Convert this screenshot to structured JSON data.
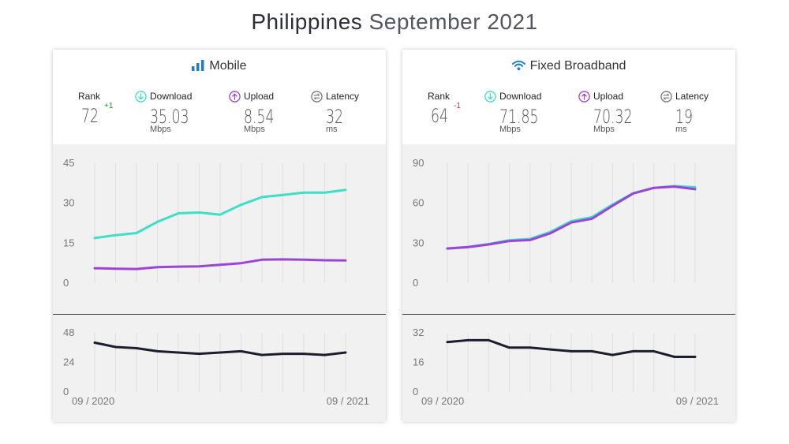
{
  "title": {
    "country": "Philippines",
    "period": "September 2021"
  },
  "colors": {
    "download": "#3ddfc7",
    "upload": "#9b45d8",
    "latency": "#1d1d2e",
    "rank_up": "#2e8b2e",
    "rank_down": "#d0314a",
    "accent_blue": "#1f7bd6"
  },
  "icons": {
    "mobile": "signal-bars-icon",
    "fixed": "wifi-icon",
    "download": "download-arrow-icon",
    "upload": "upload-arrow-icon",
    "latency": "latency-arrows-icon"
  },
  "cards": [
    {
      "title": "Mobile",
      "rank": {
        "label": "Rank",
        "value": "72",
        "change": "+1"
      },
      "download": {
        "label": "Download",
        "value": "35.03",
        "unit": "Mbps"
      },
      "upload": {
        "label": "Upload",
        "value": "8.54",
        "unit": "Mbps"
      },
      "latency": {
        "label": "Latency",
        "value": "32",
        "unit": "ms"
      },
      "x_labels": [
        "09 / 2020",
        "09 / 2021"
      ]
    },
    {
      "title": "Fixed Broadband",
      "rank": {
        "label": "Rank",
        "value": "64",
        "change": "-1"
      },
      "download": {
        "label": "Download",
        "value": "71.85",
        "unit": "Mbps"
      },
      "upload": {
        "label": "Upload",
        "value": "70.32",
        "unit": "Mbps"
      },
      "latency": {
        "label": "Latency",
        "value": "19",
        "unit": "ms"
      },
      "x_labels": [
        "09 / 2020",
        "09 / 2021"
      ]
    }
  ],
  "chart_data": [
    {
      "type": "line",
      "title": "Mobile",
      "x": [
        "09/2020",
        "10/2020",
        "11/2020",
        "12/2020",
        "01/2021",
        "02/2021",
        "03/2021",
        "04/2021",
        "05/2021",
        "06/2021",
        "07/2021",
        "08/2021",
        "09/2021"
      ],
      "speed": {
        "ylim": [
          0,
          45
        ],
        "yticks": [
          0,
          15,
          30,
          45
        ],
        "series": [
          {
            "name": "Download",
            "values": [
              16.9,
              18.0,
              18.8,
              23.0,
              26.2,
              26.5,
              25.7,
              29.4,
              32.3,
              33.1,
              34.0,
              34.0,
              35.0
            ]
          },
          {
            "name": "Upload",
            "values": [
              5.6,
              5.4,
              5.3,
              6.0,
              6.2,
              6.3,
              6.9,
              7.5,
              8.8,
              8.9,
              8.8,
              8.6,
              8.5
            ]
          }
        ]
      },
      "latency": {
        "ylim": [
          0,
          48
        ],
        "yticks": [
          0,
          24,
          48
        ],
        "series": [
          {
            "name": "Latency",
            "values": [
              40,
              36.5,
              35.5,
              33,
              32,
              31,
              32,
              33,
              30,
              31,
              31,
              30,
              32
            ]
          }
        ]
      }
    },
    {
      "type": "line",
      "title": "Fixed Broadband",
      "x": [
        "09/2020",
        "10/2020",
        "11/2020",
        "12/2020",
        "01/2021",
        "02/2021",
        "03/2021",
        "04/2021",
        "05/2021",
        "06/2021",
        "07/2021",
        "08/2021",
        "09/2021"
      ],
      "speed": {
        "ylim": [
          0,
          90
        ],
        "yticks": [
          0,
          30,
          60,
          90
        ],
        "series": [
          {
            "name": "Download",
            "values": [
              26.0,
              27.2,
              29.3,
              32.2,
              33.2,
              38.5,
              46.5,
              49.5,
              59.0,
              67.5,
              71.5,
              72.8,
              72.0
            ]
          },
          {
            "name": "Upload",
            "values": [
              26.0,
              27.0,
              29.0,
              31.6,
              32.3,
              37.5,
              45.5,
              48.3,
              58.0,
              67.3,
              71.5,
              72.5,
              70.5
            ]
          }
        ]
      },
      "latency": {
        "ylim": [
          0,
          32
        ],
        "yticks": [
          0,
          16,
          32
        ],
        "series": [
          {
            "name": "Latency",
            "values": [
              27,
              28,
              28,
              24,
              24,
              23,
              22,
              22,
              20,
              22,
              22,
              19,
              19
            ]
          }
        ]
      }
    }
  ]
}
